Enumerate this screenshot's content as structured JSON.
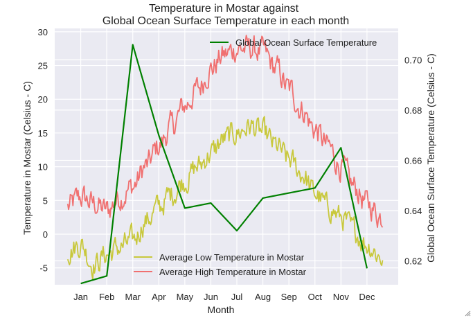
{
  "chart_data": {
    "type": "line",
    "title": [
      "Temperature in Mostar against",
      "Global Ocean Surface Temperature in each month"
    ],
    "xlabel": "Month",
    "ylabel_left": "Temperature in Mostar (Celsius - C)",
    "ylabel_right": "Global Ocean Surface Temperature (Celsius - C)",
    "months": [
      "Jan",
      "Feb",
      "Mar",
      "Apr",
      "May",
      "Jun",
      "Jul",
      "Aug",
      "Sep",
      "Oct",
      "Nov",
      "Dec"
    ],
    "ylim_left": [
      -7.5,
      30.5
    ],
    "ylim_right": [
      0.6105,
      0.7125
    ],
    "yticks_left": [
      -5,
      0,
      5,
      10,
      15,
      20,
      25,
      30
    ],
    "yticks_right": [
      0.62,
      0.64,
      0.66,
      0.68,
      0.7
    ],
    "grid": true,
    "legend_top": {
      "placement": "top-right",
      "entries": [
        "Global Ocean Surface Temperature"
      ]
    },
    "legend_bottom": {
      "placement": "bottom-center",
      "entries": [
        "Average Low Temperature in Mostar",
        "Average High Temperature in Mostar"
      ]
    },
    "colors": {
      "high": "#f07070",
      "low": "#c8c83c",
      "ocean": "#008000",
      "bg": "#eaeaf2",
      "grid": "#ffffff"
    },
    "series": [
      {
        "name": "Global Ocean Surface Temperature",
        "axis": "right",
        "x": [
          1,
          2,
          3,
          4,
          5,
          6,
          7,
          8,
          9,
          10,
          11,
          12
        ],
        "values": [
          0.611,
          0.614,
          0.706,
          0.67,
          0.641,
          0.643,
          0.632,
          0.645,
          0.647,
          0.649,
          0.665,
          0.617
        ]
      },
      {
        "name": "Average Low Temperature in Mostar",
        "axis": "left",
        "anchors_x": [
          0.5,
          1.0,
          1.5,
          2.0,
          2.5,
          3.0,
          3.5,
          4.0,
          4.5,
          5.0,
          5.5,
          6.0,
          6.5,
          7.0,
          7.5,
          8.0,
          8.5,
          9.0,
          9.5,
          10.0,
          10.5,
          11.0,
          11.5,
          12.0,
          12.6
        ],
        "anchors_y": [
          -2.5,
          -1.5,
          -4.5,
          -3.0,
          -2.0,
          -1.0,
          2.0,
          4.0,
          6.0,
          8.0,
          10.0,
          12.0,
          14.0,
          15.0,
          16.0,
          15.0,
          13.0,
          11.0,
          9.0,
          6.0,
          4.0,
          2.5,
          0.5,
          -1.5,
          -3.5
        ]
      },
      {
        "name": "Average High Temperature in Mostar",
        "axis": "left",
        "anchors_x": [
          0.5,
          1.0,
          1.5,
          2.0,
          2.5,
          3.0,
          3.5,
          4.0,
          4.5,
          5.0,
          5.5,
          6.0,
          6.5,
          7.0,
          7.5,
          8.0,
          8.5,
          9.0,
          9.5,
          10.0,
          10.5,
          11.0,
          11.5,
          12.0,
          12.6
        ],
        "anchors_y": [
          4.0,
          5.5,
          4.5,
          3.5,
          5.5,
          7.0,
          10.0,
          13.0,
          16.0,
          19.0,
          21.5,
          24.5,
          26.5,
          27.5,
          27.5,
          27.0,
          24.5,
          21.5,
          18.5,
          15.5,
          13.0,
          10.0,
          7.0,
          4.5,
          2.5
        ]
      }
    ]
  }
}
